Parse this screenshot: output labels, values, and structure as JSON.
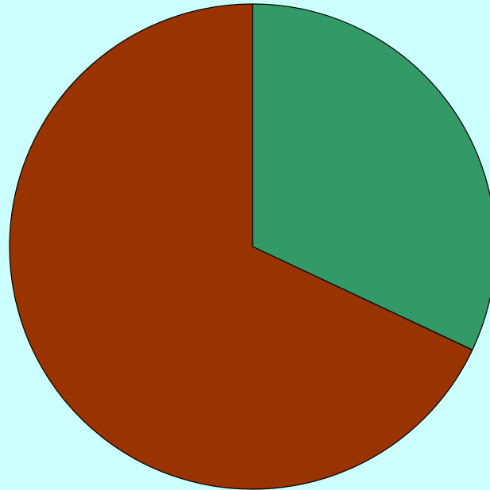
{
  "chart_data": {
    "type": "pie",
    "background_color": "#ccffff",
    "start_angle": "12 o'clock",
    "direction": "clockwise",
    "outline_color": "#000000",
    "slices": [
      {
        "value": 32,
        "color": "#339966"
      },
      {
        "value": 68,
        "color": "#993300"
      }
    ]
  }
}
